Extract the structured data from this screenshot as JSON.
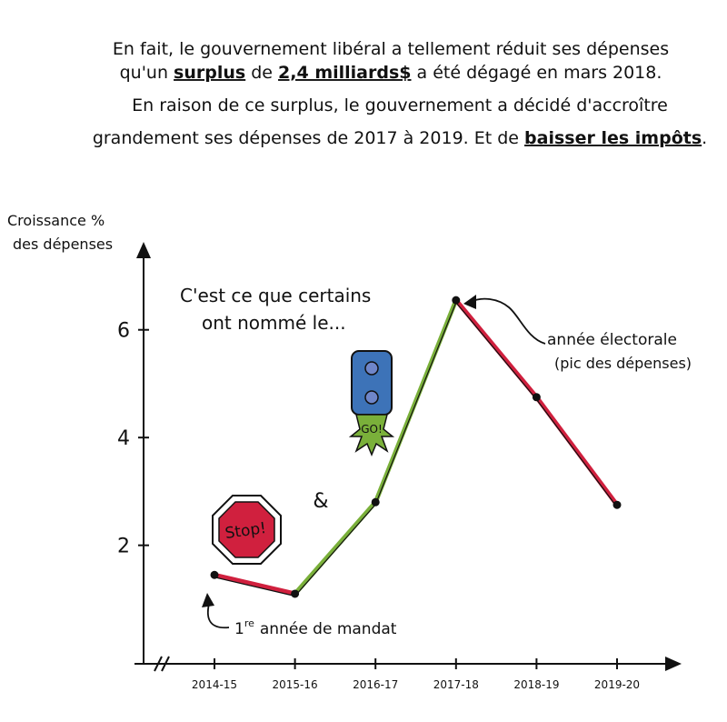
{
  "intro": {
    "line1": "En fait, le gouvernement libéral a tellement réduit ses dépenses",
    "line2_before": "qu'un ",
    "line2_surplus": "surplus",
    "line2_mid": " de ",
    "line2_amount": "2,4 milliards$",
    "line2_after": " a été dégagé en mars 2018.",
    "line3": "En raison de ce surplus, le gouvernement a décidé d'accroître",
    "line4_before": "grandement ses dépenses de 2017 à 2019. Et de ",
    "line4_taxes": "baisser les impôts",
    "line4_after": "."
  },
  "annotations": {
    "callout_line1": "C'est ce que certains",
    "callout_line2": "ont nommé le...",
    "stop_sign": "Stop!",
    "ampersand": "&",
    "go_light": "GO!",
    "election_line1": "année électorale",
    "election_line2": "(pic des dépenses)",
    "first_year_sup": "re",
    "first_year_num": "1",
    "first_year_text": "année de mandat"
  },
  "colors": {
    "ink": "#111111",
    "decline": "#d0203e",
    "rise": "#7ab03a",
    "stop_red": "#d0203e",
    "light_blue": "#3d73b8",
    "light_dim": "#6f86c9",
    "go_green": "#7ab03a"
  },
  "chart_data": {
    "type": "line",
    "title": "",
    "xlabel": "",
    "ylabel_line1": "Croissance %",
    "ylabel_line2": "des dépenses",
    "categories": [
      "2014-15",
      "2015-16",
      "2016-17",
      "2017-18",
      "2018-19",
      "2019-20"
    ],
    "values": [
      1.45,
      1.1,
      2.8,
      6.55,
      4.75,
      2.75
    ],
    "segment_colors": [
      "decline",
      "rise",
      "rise",
      "decline",
      "decline"
    ],
    "y_ticks": [
      2,
      4,
      6
    ],
    "ylim": [
      -0.2,
      7.7
    ],
    "grid": false,
    "axis_break": true
  }
}
